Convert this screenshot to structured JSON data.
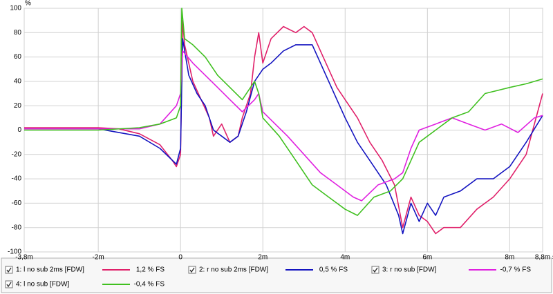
{
  "chart_data": {
    "type": "line",
    "y_unit": "%",
    "x_unit": "s",
    "grid": true,
    "xlim": [
      -0.0038,
      0.0088
    ],
    "ylim": [
      -100,
      100
    ],
    "xticks": [
      {
        "value": -0.0038,
        "label": "-3,8m"
      },
      {
        "value": -0.002,
        "label": "-2m"
      },
      0,
      {
        "value": 0.002,
        "label": "2m"
      },
      {
        "value": 0.004,
        "label": "4m"
      },
      {
        "value": 0.006,
        "label": "6m"
      },
      {
        "value": 0.008,
        "label": "8m"
      },
      {
        "value": 0.0088,
        "label": "8,8m"
      }
    ],
    "yticks": [
      -100,
      -80,
      -60,
      -40,
      -20,
      0,
      20,
      40,
      60,
      80,
      100
    ],
    "series": [
      {
        "name": "1: l no sub 2ms [FDW]",
        "level": "1,2 % FS",
        "color": "#e0206a",
        "x": [
          -0.0038,
          -0.003,
          -0.002,
          -0.0015,
          -0.001,
          -0.0005,
          -0.0002,
          -0.0001,
          0,
          5e-05,
          0.0001,
          0.0003,
          0.0005,
          0.0007,
          0.0008,
          0.001,
          0.0012,
          0.0014,
          0.0015,
          0.0017,
          0.0018,
          0.0019,
          0.002,
          0.0022,
          0.0025,
          0.0028,
          0.003,
          0.0032,
          0.0034,
          0.0036,
          0.0038,
          0.004,
          0.0043,
          0.0046,
          0.0049,
          0.0052,
          0.0054,
          0.0056,
          0.0058,
          0.006,
          0.0062,
          0.0064,
          0.0068,
          0.0072,
          0.0076,
          0.008,
          0.0084,
          0.0088
        ],
        "values": [
          2,
          2,
          2,
          1,
          -3,
          -12,
          -25,
          -30,
          -20,
          90,
          70,
          40,
          25,
          10,
          -5,
          5,
          -10,
          -5,
          10,
          30,
          60,
          80,
          55,
          75,
          85,
          80,
          85,
          80,
          65,
          50,
          35,
          25,
          10,
          -10,
          -25,
          -45,
          -80,
          -55,
          -70,
          -75,
          -85,
          -80,
          -80,
          -65,
          -55,
          -40,
          -20,
          30
        ]
      },
      {
        "name": "2: r no sub 2ms [FDW]",
        "level": "0,5 % FS",
        "color": "#1414c0",
        "x": [
          -0.0038,
          -0.002,
          -0.001,
          -0.0005,
          -0.0001,
          0,
          5e-05,
          0.0002,
          0.0004,
          0.0006,
          0.0008,
          0.001,
          0.0012,
          0.0014,
          0.0016,
          0.0018,
          0.002,
          0.0022,
          0.0025,
          0.0028,
          0.003,
          0.0032,
          0.0034,
          0.0036,
          0.0038,
          0.004,
          0.0043,
          0.0046,
          0.005,
          0.0053,
          0.0054,
          0.0056,
          0.0058,
          0.006,
          0.0062,
          0.0064,
          0.0068,
          0.0072,
          0.0076,
          0.008,
          0.0084,
          0.0088
        ],
        "values": [
          1,
          1,
          -5,
          -15,
          -28,
          -15,
          75,
          45,
          30,
          20,
          0,
          -5,
          -10,
          -5,
          15,
          40,
          50,
          55,
          65,
          70,
          70,
          70,
          55,
          40,
          25,
          10,
          -10,
          -25,
          -45,
          -70,
          -85,
          -60,
          -75,
          -60,
          -70,
          -55,
          -50,
          -40,
          -40,
          -30,
          -10,
          12
        ]
      },
      {
        "name": "3: r no sub [FDW]",
        "level": "-0,7 % FS",
        "color": "#e020e0",
        "x": [
          -0.0038,
          -0.002,
          -0.001,
          -0.0005,
          -0.0001,
          0,
          5e-05,
          0.0003,
          0.0006,
          0.0009,
          0.0012,
          0.0015,
          0.0018,
          0.0019,
          0.002,
          0.0023,
          0.0026,
          0.003,
          0.0034,
          0.0038,
          0.0042,
          0.0044,
          0.0048,
          0.0052,
          0.0054,
          0.0056,
          0.0058,
          0.0062,
          0.0066,
          0.007,
          0.0074,
          0.0078,
          0.0082,
          0.0086,
          0.0088
        ],
        "values": [
          1,
          1,
          1,
          5,
          20,
          30,
          65,
          55,
          45,
          35,
          25,
          15,
          25,
          30,
          15,
          5,
          -5,
          -20,
          -35,
          -45,
          -55,
          -58,
          -45,
          -40,
          -35,
          -15,
          0,
          5,
          10,
          5,
          0,
          5,
          -2,
          10,
          12
        ]
      },
      {
        "name": "4: l no sub [FDW]",
        "level": "-0,4 % FS",
        "color": "#40c020",
        "x": [
          -0.0038,
          -0.002,
          -0.001,
          -0.0005,
          -0.0001,
          0,
          3e-05,
          0.0001,
          0.0003,
          0.0006,
          0.0009,
          0.0012,
          0.0015,
          0.0018,
          0.0019,
          0.002,
          0.0024,
          0.0028,
          0.0032,
          0.0036,
          0.004,
          0.0043,
          0.0047,
          0.0051,
          0.0054,
          0.0056,
          0.0058,
          0.0062,
          0.0066,
          0.007,
          0.0074,
          0.008,
          0.0084,
          0.0088
        ],
        "values": [
          0,
          0,
          2,
          5,
          10,
          20,
          100,
          75,
          70,
          60,
          45,
          35,
          25,
          40,
          30,
          10,
          -5,
          -25,
          -45,
          -55,
          -65,
          -70,
          -55,
          -50,
          -40,
          -25,
          -10,
          0,
          10,
          15,
          30,
          35,
          38,
          42
        ]
      }
    ]
  }
}
